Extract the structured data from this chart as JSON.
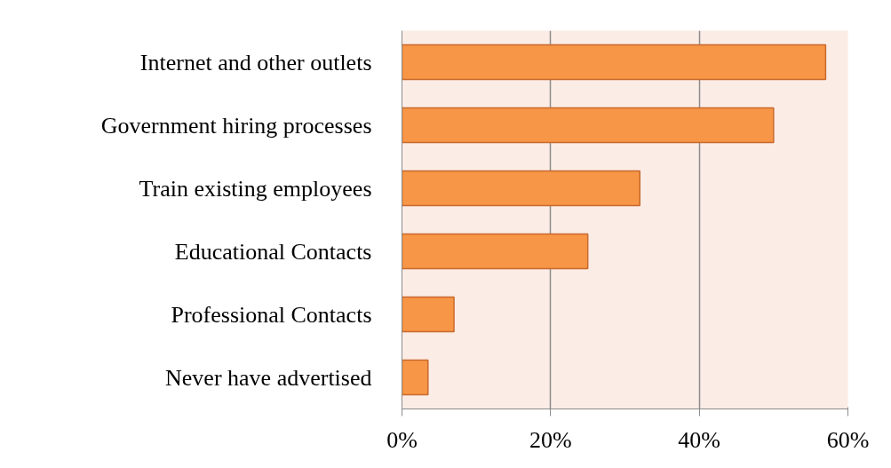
{
  "chart_data": {
    "type": "bar",
    "orientation": "horizontal",
    "categories": [
      "Internet and other outlets",
      "Government hiring processes",
      "Train existing employees",
      "Educational Contacts",
      "Professional Contacts",
      "Never have advertised"
    ],
    "values": [
      57,
      50,
      32,
      25,
      7,
      3.5
    ],
    "color": "#f79646",
    "xlim": [
      0,
      60
    ],
    "xticks": [
      {
        "value": 0,
        "label": "0%"
      },
      {
        "value": 20,
        "label": "20%"
      },
      {
        "value": 40,
        "label": "40%"
      },
      {
        "value": 60,
        "label": "60%"
      }
    ],
    "grid": "x"
  }
}
